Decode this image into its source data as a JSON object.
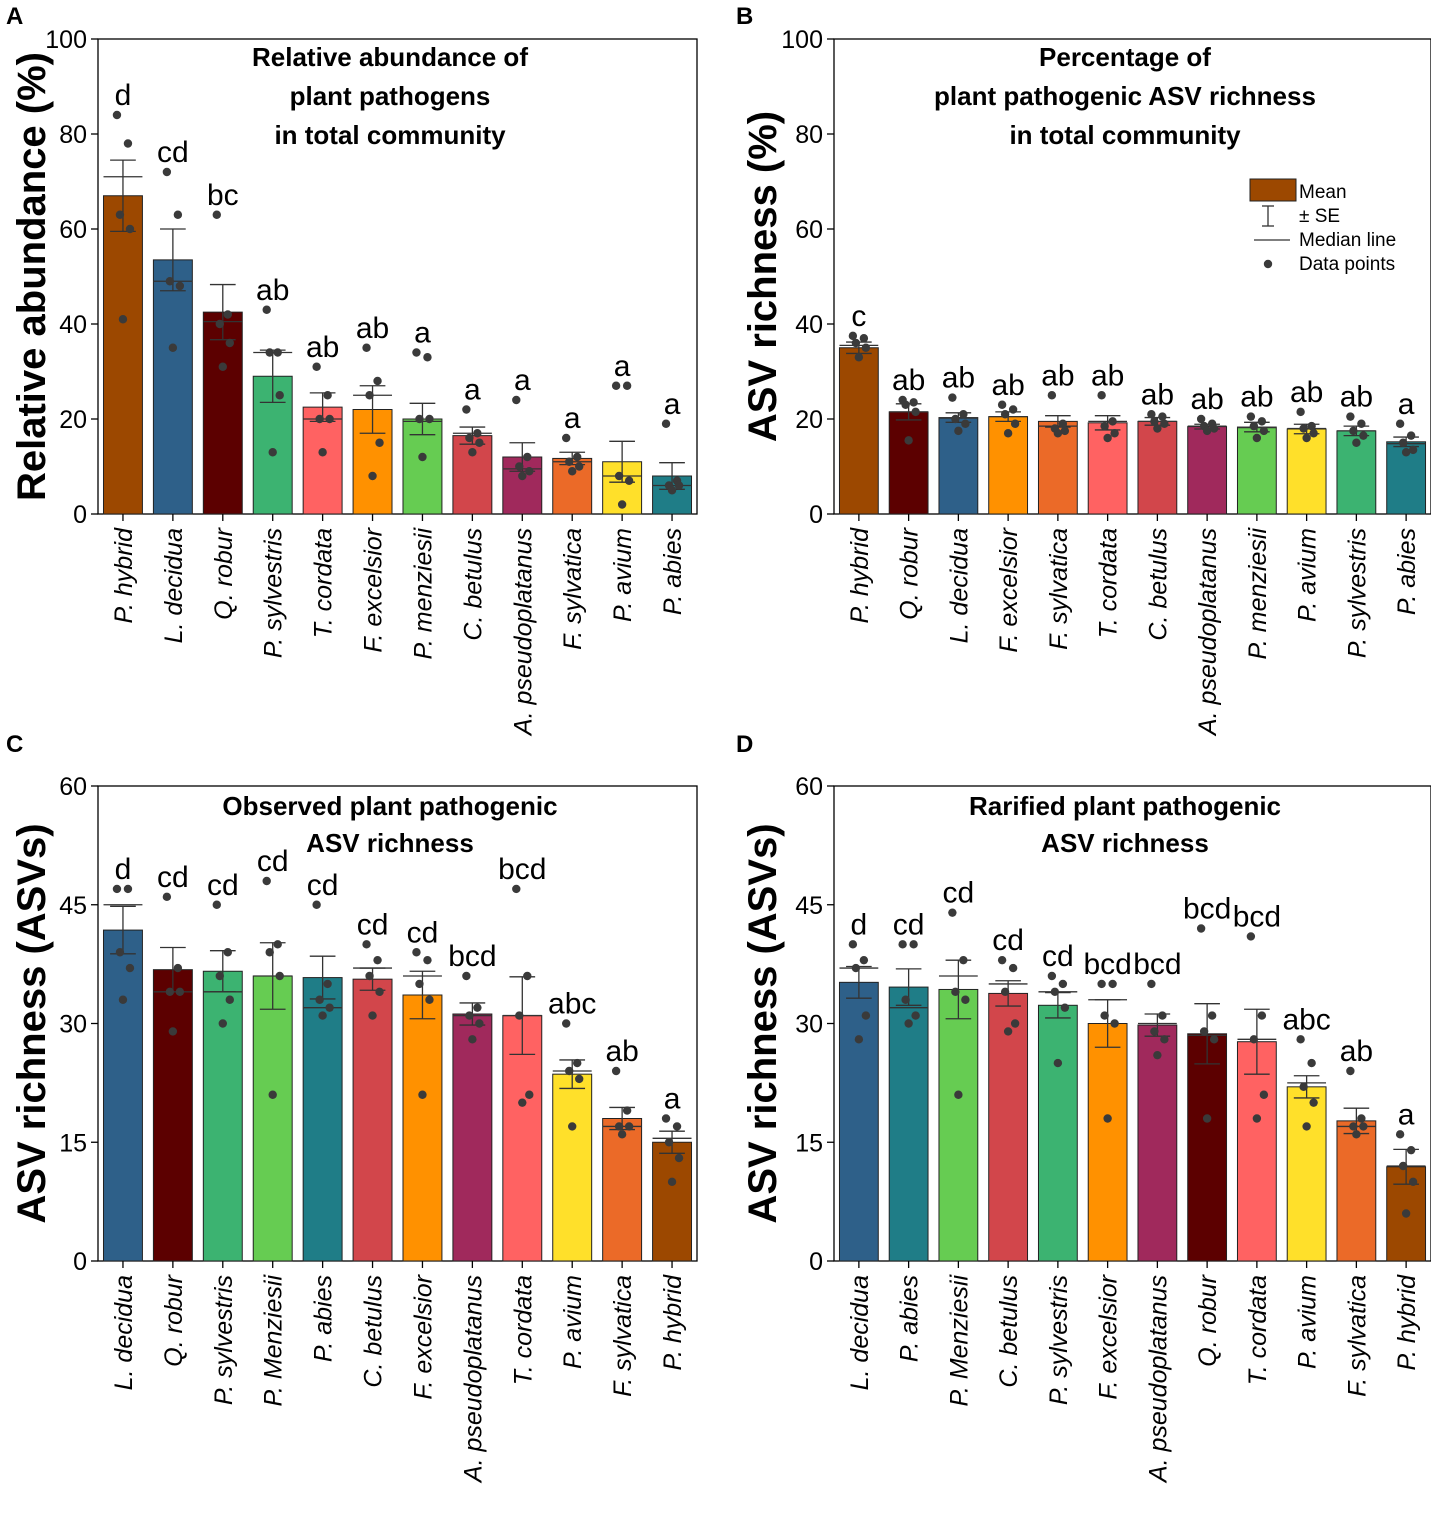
{
  "figure": {
    "legend": {
      "mean": "Mean",
      "se": "± SE",
      "median": "Median line",
      "points": "Data points"
    }
  },
  "chart_data": [
    {
      "type": "bar",
      "panel": "A",
      "title": [
        "Relative abundance of",
        "plant pathogens",
        "in total community"
      ],
      "ylabel": "Relative abundance (%)",
      "ylim": [
        0,
        100
      ],
      "yticks": [
        0,
        20,
        40,
        60,
        80,
        100
      ],
      "categories": [
        "P. hybrid",
        "L. decidua",
        "Q. robur",
        "P. sylvestris",
        "T. cordata",
        "F. excelsior",
        "P. menziesii",
        "C. betulus",
        "A. pseudoplatanus",
        "F. sylvatica",
        "P. avium",
        "P. abies"
      ],
      "colors": [
        "#9C4800",
        "#2E6089",
        "#5C0000",
        "#3CB371",
        "#FF6262",
        "#FF9100",
        "#66CC52",
        "#D2464B",
        "#A0295C",
        "#EB6A28",
        "#FFE02A",
        "#1F7D87"
      ],
      "values": [
        67,
        53.5,
        42.5,
        29,
        22.5,
        22,
        20,
        16.5,
        12,
        11.7,
        11,
        8
      ],
      "se": [
        7.5,
        6.5,
        5.8,
        5.5,
        3.0,
        5.0,
        3.3,
        1.8,
        3.0,
        1.3,
        4.3,
        2.8
      ],
      "medians": [
        71,
        49,
        40.5,
        34,
        20,
        25,
        19.5,
        17,
        9.5,
        11,
        8,
        6
      ],
      "points": [
        [
          84,
          78,
          63,
          60,
          41
        ],
        [
          72,
          63,
          49,
          48,
          35
        ],
        [
          63,
          42,
          40,
          36,
          31
        ],
        [
          43,
          34,
          34,
          25,
          13
        ],
        [
          31,
          25,
          20,
          20,
          13
        ],
        [
          35,
          28,
          25,
          15,
          8
        ],
        [
          34,
          33,
          20,
          20,
          12
        ],
        [
          22,
          17,
          16,
          15,
          13
        ],
        [
          24,
          12,
          10,
          9,
          8
        ],
        [
          16,
          12,
          11,
          10,
          9
        ],
        [
          27,
          27,
          8,
          7,
          2
        ],
        [
          19,
          7,
          6,
          6,
          5
        ]
      ],
      "letters": [
        "d",
        "cd",
        "bc",
        "ab",
        "ab",
        "ab",
        "a",
        "a",
        "a",
        "a",
        "a",
        "a"
      ],
      "show_legend": false
    },
    {
      "type": "bar",
      "panel": "B",
      "title": [
        "Percentage of",
        "plant pathogenic ASV richness",
        "in total community"
      ],
      "ylabel": "ASV richness (%)",
      "ylim": [
        0,
        100
      ],
      "yticks": [
        0,
        20,
        40,
        60,
        80,
        100
      ],
      "categories": [
        "P. hybrid",
        "Q. robur",
        "L. decidua",
        "F. excelsior",
        "F. sylvatica",
        "T. cordata",
        "C. betulus",
        "A. pseudoplatanus",
        "P. menziesii",
        "P. avium",
        "P. sylvestris",
        "P. abies"
      ],
      "colors": [
        "#9C4800",
        "#5C0000",
        "#2E6089",
        "#FF9100",
        "#EB6A28",
        "#FF6262",
        "#D2464B",
        "#A0295C",
        "#66CC52",
        "#FFE02A",
        "#3CB371",
        "#1F7D87"
      ],
      "values": [
        35,
        21.5,
        20.3,
        20.5,
        19.5,
        19.2,
        19.5,
        18.4,
        18.3,
        17.9,
        17.5,
        15.2
      ],
      "se": [
        1.2,
        1.7,
        1.0,
        1.0,
        1.2,
        1.5,
        0.8,
        0.5,
        1.0,
        1.0,
        1.0,
        1.0
      ],
      "medians": [
        35.5,
        21.5,
        20.2,
        20.5,
        18.5,
        19.5,
        19.5,
        18.5,
        18.2,
        18,
        17.5,
        14.8
      ],
      "points": [
        [
          37.5,
          37,
          36,
          35,
          33
        ],
        [
          24,
          23.5,
          23,
          21.5,
          15.5
        ],
        [
          24.5,
          21,
          20,
          19,
          17.5
        ],
        [
          23,
          22,
          21,
          19,
          17
        ],
        [
          25,
          19,
          18,
          17.5,
          17
        ],
        [
          25,
          19.5,
          18.5,
          17,
          16
        ],
        [
          21,
          20.5,
          19.5,
          19,
          18
        ],
        [
          20,
          19,
          18.5,
          18,
          17.5
        ],
        [
          20.5,
          19.5,
          18.5,
          17.5,
          16
        ],
        [
          21.5,
          18.5,
          18,
          17,
          16
        ],
        [
          20.5,
          19,
          17.5,
          16.5,
          15
        ],
        [
          19,
          16.5,
          15,
          13.5,
          13
        ]
      ],
      "letters": [
        "c",
        "ab",
        "ab",
        "ab",
        "ab",
        "ab",
        "ab",
        "ab",
        "ab",
        "ab",
        "ab",
        "a"
      ],
      "show_legend": true
    },
    {
      "type": "bar",
      "panel": "C",
      "title": [
        "Observed plant pathogenic",
        "ASV richness"
      ],
      "ylabel": "ASV richness (ASVs)",
      "ylim": [
        0,
        60
      ],
      "yticks": [
        0,
        15,
        30,
        45,
        60
      ],
      "categories": [
        "L. decidua",
        "Q. robur",
        "P. sylvestris",
        "P. Menziesii",
        "P. abies",
        "C. betulus",
        "F. excelsior",
        "A. pseudoplatanus",
        "T. cordata",
        "P. avium",
        "F. sylvatica",
        "P. hybrid"
      ],
      "colors": [
        "#2E6089",
        "#5C0000",
        "#3CB371",
        "#66CC52",
        "#1F7D87",
        "#D2464B",
        "#FF9100",
        "#A0295C",
        "#FF6262",
        "#FFE02A",
        "#EB6A28",
        "#9C4800"
      ],
      "values": [
        41.8,
        36.8,
        36.6,
        36,
        35.8,
        35.6,
        33.6,
        31.2,
        31,
        23.6,
        18,
        15
      ],
      "se": [
        3.0,
        2.8,
        2.6,
        4.2,
        2.7,
        1.4,
        3.0,
        1.4,
        4.9,
        1.8,
        1.4,
        1.4
      ],
      "medians": [
        45,
        34,
        34,
        36,
        32,
        37,
        36,
        31,
        31,
        24,
        17,
        15.5
      ],
      "points": [
        [
          47,
          47,
          39,
          37,
          33
        ],
        [
          46,
          37,
          34,
          34,
          29
        ],
        [
          45,
          39,
          36,
          33,
          30
        ],
        [
          48,
          40,
          39,
          36,
          21
        ],
        [
          45,
          35,
          33,
          32,
          31
        ],
        [
          40,
          38,
          36,
          34,
          31
        ],
        [
          39,
          38,
          35,
          33,
          21
        ],
        [
          36,
          32,
          31,
          30,
          28
        ],
        [
          47,
          36,
          31,
          21,
          20
        ],
        [
          30,
          25,
          24,
          23,
          17
        ],
        [
          24,
          19,
          17,
          17,
          16
        ],
        [
          18,
          17,
          15,
          13,
          10
        ]
      ],
      "letters": [
        "d",
        "cd",
        "cd",
        "cd",
        "cd",
        "cd",
        "cd",
        "bcd",
        "bcd",
        "abc",
        "ab",
        "a"
      ],
      "show_legend": false
    },
    {
      "type": "bar",
      "panel": "D",
      "title": [
        "Rarified plant pathogenic",
        "ASV richness"
      ],
      "ylabel": "ASV richness (ASVs)",
      "ylim": [
        0,
        60
      ],
      "yticks": [
        0,
        15,
        30,
        45,
        60
      ],
      "categories": [
        "L. decidua",
        "P. abies",
        "P. Menziesii",
        "C. betulus",
        "P. sylvestris",
        "F. excelsior",
        "A. pseudoplatanus",
        "Q. robur",
        "T. cordata",
        "P. avium",
        "F. sylvatica",
        "P. hybrid"
      ],
      "colors": [
        "#2E6089",
        "#1F7D87",
        "#66CC52",
        "#D2464B",
        "#3CB371",
        "#FF9100",
        "#A0295C",
        "#5C0000",
        "#FF6262",
        "#FFE02A",
        "#EB6A28",
        "#9C4800"
      ],
      "values": [
        35.2,
        34.6,
        34.3,
        33.8,
        32.3,
        30,
        29.8,
        28.7,
        27.7,
        22,
        17.7,
        11.9
      ],
      "se": [
        2.0,
        2.3,
        3.7,
        1.6,
        1.6,
        3.0,
        1.4,
        3.8,
        4.1,
        1.4,
        1.6,
        2.2
      ],
      "medians": [
        37,
        32,
        36,
        35,
        34,
        33,
        30,
        28.5,
        28,
        22.5,
        17,
        12
      ],
      "points": [
        [
          40,
          38,
          37,
          31,
          28
        ],
        [
          40,
          40,
          33,
          31,
          30
        ],
        [
          44,
          38,
          34,
          33,
          21
        ],
        [
          38,
          37,
          34,
          30,
          29
        ],
        [
          36,
          35,
          34,
          32,
          25
        ],
        [
          35,
          35,
          31,
          30,
          18
        ],
        [
          35,
          31,
          29,
          28,
          26
        ],
        [
          42,
          31,
          29,
          28,
          18
        ],
        [
          41,
          31,
          28,
          21,
          18
        ],
        [
          28,
          25,
          22,
          20,
          17
        ],
        [
          24,
          18,
          17,
          17,
          16
        ],
        [
          16,
          14,
          12,
          10,
          6
        ]
      ],
      "letters": [
        "d",
        "cd",
        "cd",
        "cd",
        "cd",
        "bcd",
        "bcd",
        "bcd",
        "bcd",
        "abc",
        "ab",
        "a"
      ],
      "show_legend": false
    }
  ]
}
